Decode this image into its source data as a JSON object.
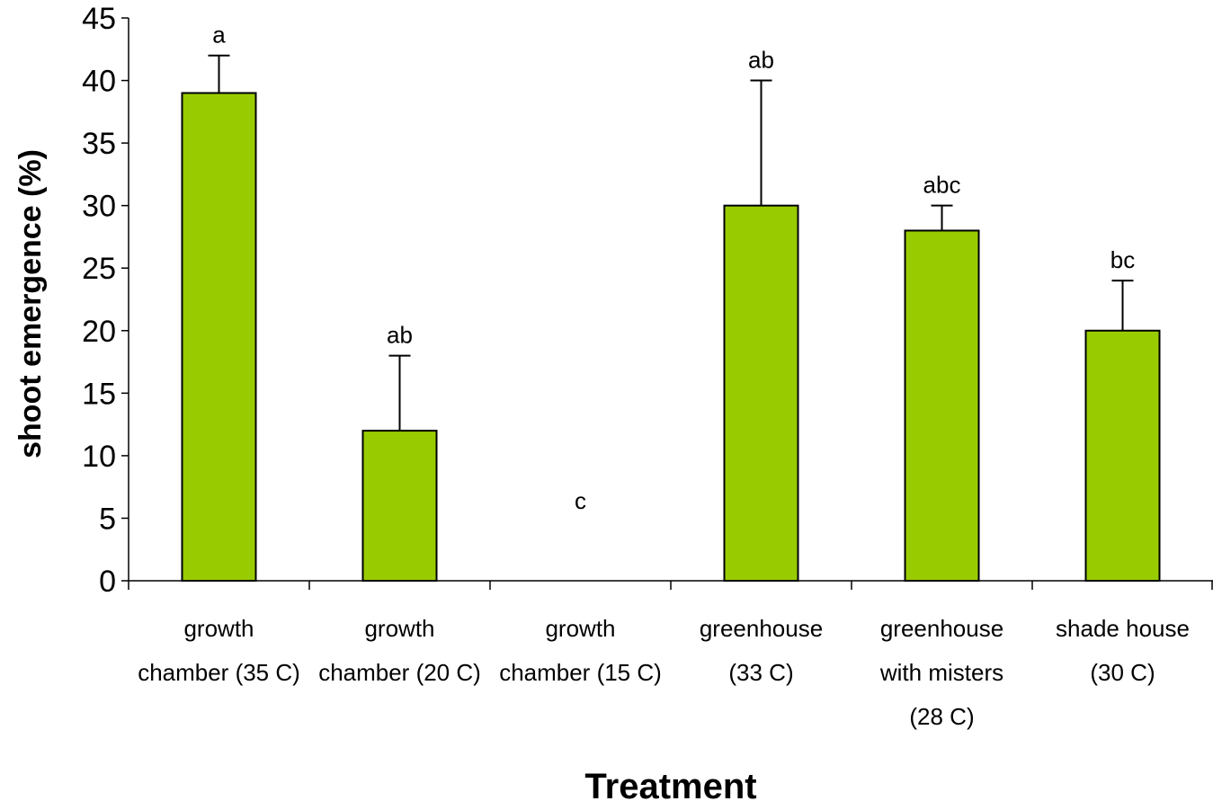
{
  "chart_data": {
    "type": "bar",
    "title": "",
    "xlabel": "Treatment",
    "ylabel": "shoot emergence (%)",
    "ylim": [
      0,
      45
    ],
    "yticks": [
      0,
      5,
      10,
      15,
      20,
      25,
      30,
      35,
      40,
      45
    ],
    "grid": false,
    "legend": "none",
    "bar_color": "#99CC00",
    "bar_edge_color": "#000000",
    "categories": [
      [
        "growth",
        "chamber (35 C)"
      ],
      [
        "growth",
        "chamber (20 C)"
      ],
      [
        "growth",
        "chamber (15 C)"
      ],
      [
        "greenhouse",
        "(33 C)"
      ],
      [
        "greenhouse",
        "with misters",
        "(28 C)"
      ],
      [
        "shade house",
        "(30 C)"
      ]
    ],
    "values": [
      39,
      12,
      0,
      30,
      28,
      20
    ],
    "error_upper": [
      42,
      18,
      null,
      40,
      30,
      24
    ],
    "significance_labels": [
      "a",
      "ab",
      "c",
      "ab",
      "abc",
      "bc"
    ]
  }
}
